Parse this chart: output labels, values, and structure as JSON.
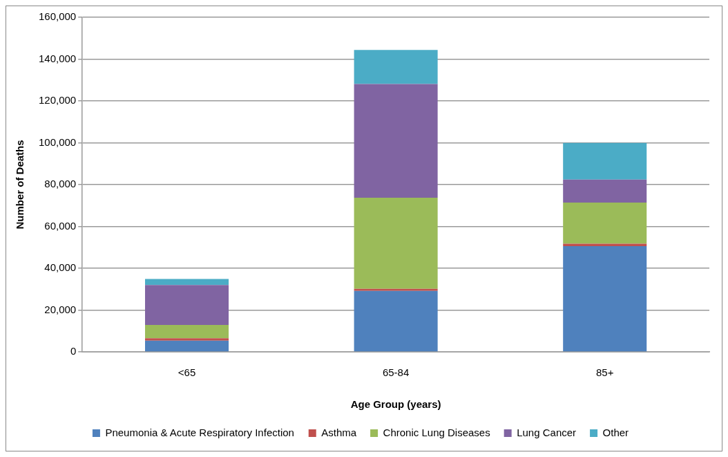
{
  "chart_data": {
    "type": "bar",
    "stacked": true,
    "xlabel": "Age Group (years)",
    "ylabel": "Number of Deaths",
    "categories": [
      "<65",
      "65-84",
      "85+"
    ],
    "series": [
      {
        "name": "Pneumonia & Acute Respiratory Infection",
        "color": "#4f81bd",
        "values": [
          5400,
          29200,
          50600
        ]
      },
      {
        "name": "Asthma",
        "color": "#c0504d",
        "values": [
          1100,
          1000,
          1100
        ]
      },
      {
        "name": "Chronic Lung Diseases",
        "color": "#9bbb59",
        "values": [
          6400,
          43500,
          19700
        ]
      },
      {
        "name": "Lung Cancer",
        "color": "#8064a2",
        "values": [
          19100,
          54400,
          11000
        ]
      },
      {
        "name": "Other",
        "color": "#4bacc6",
        "values": [
          2900,
          16300,
          17500
        ]
      }
    ],
    "ylim": [
      0,
      160000
    ],
    "yticks": [
      0,
      {
        "value": 20000,
        "label": "20,000"
      },
      {
        "value": 40000,
        "label": "40,000"
      },
      {
        "value": 60000,
        "label": "60,000"
      },
      {
        "value": 80000,
        "label": "80,000"
      },
      {
        "value": 100000,
        "label": "100,000"
      },
      {
        "value": 120000,
        "label": "120,000"
      },
      {
        "value": 140000,
        "label": "140,000"
      },
      {
        "value": 160000,
        "label": "160,000"
      }
    ],
    "grid": "y",
    "legend": "bottom"
  }
}
